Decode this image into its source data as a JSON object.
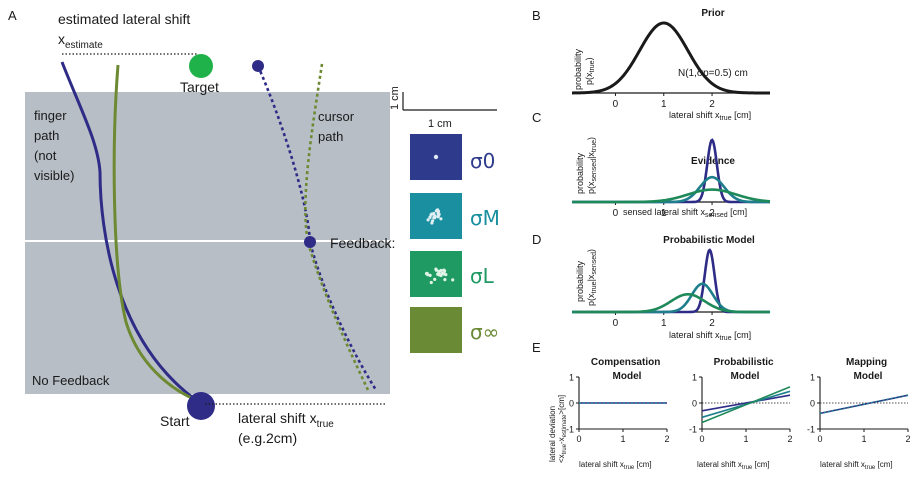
{
  "colors": {
    "blue": "#2e2c86",
    "teal": "#1e7e8c",
    "green": "#1e8a5a",
    "olive": "#6d8a33",
    "gray_panel": "#b7bec6",
    "target_green": "#1fb24a",
    "box_s0": "#2e3a8c",
    "box_sM": "#1a8fa0",
    "box_sL": "#1f9a62",
    "box_sinf": "#6a8a35"
  },
  "panelA": {
    "letter": "A",
    "heading": "estimated lateral shift",
    "x_estimate_main": "x",
    "x_estimate_sub": "estimate",
    "target_label": "Target",
    "finger_path_lines": [
      "finger",
      "path",
      "(not",
      "visible)"
    ],
    "cursor_path_lines": [
      "cursor",
      "path"
    ],
    "feedback_label": "Feedback:",
    "no_feedback_label": "No Feedback",
    "start_label": "Start",
    "shift_main": "lateral shift x",
    "shift_sub": "true",
    "shift_example": "(e.g.2cm)",
    "scale_vertical": "1 cm",
    "scale_horizontal": "1 cm",
    "sigma_labels": [
      "σ0",
      "σM",
      "σL",
      "σ∞"
    ]
  },
  "panelB": {
    "letter": "B",
    "title": "Prior",
    "ylabel_1": "probability",
    "ylabel_2": "p(x",
    "ylabel_2_sub": "true",
    "ylabel_2_end": ")",
    "annotation": "N(1,σp=0.5) cm",
    "xlabel_main": "lateral shift x",
    "xlabel_sub": "true",
    "xlabel_end": " [cm]",
    "ticks": [
      "0",
      "1",
      "2"
    ]
  },
  "panelC": {
    "letter": "C",
    "title": "Evidence",
    "ylabel_1": "probability",
    "ylabel_2": "p(x",
    "ylabel_2_sub": "sensed",
    "ylabel_2_end": "|x",
    "ylabel_2_sub2": "true",
    "ylabel_2_end2": ")",
    "xlabel_main": "sensed lateral shift x",
    "xlabel_sub": "sensed",
    "xlabel_end": " [cm]",
    "ticks": [
      "0",
      "1",
      "2"
    ]
  },
  "panelD": {
    "letter": "D",
    "title": "Probabilistic Model",
    "ylabel_1": "probability",
    "ylabel_2": "p(x",
    "ylabel_2_sub": "true",
    "ylabel_2_end": "|x",
    "ylabel_2_sub2": "sensed",
    "ylabel_2_end2": ")",
    "xlabel_main": "lateral shift x",
    "xlabel_sub": "true",
    "xlabel_end": " [cm]",
    "ticks": [
      "0",
      "1",
      "2"
    ]
  },
  "panelE": {
    "letter": "E",
    "ylabel_1": "lateral deviation",
    "ylabel_2": "<x",
    "ylabel_2_sub": "true",
    "ylabel_2_mid": "-x",
    "ylabel_2_sub2": "estimate",
    "ylabel_2_end": ">[cm]",
    "yticks": [
      "1",
      "0",
      "-1"
    ],
    "xticks": [
      "0",
      "1",
      "2"
    ],
    "xlabel_main": "lateral shift x",
    "xlabel_sub": "true",
    "xlabel_end": " [cm]",
    "titles": [
      [
        "Compensation",
        "Model"
      ],
      [
        "Probabilistic",
        "Model"
      ],
      [
        "Mapping",
        "Model"
      ]
    ]
  },
  "chart_data": [
    {
      "type": "line",
      "panel": "B",
      "title": "Prior",
      "xlim": [
        -0.9,
        3.2
      ],
      "series": [
        {
          "mean": 1.0,
          "sd": 0.5,
          "color": "#1a1a1a"
        }
      ]
    },
    {
      "type": "line",
      "panel": "C",
      "title": "Evidence",
      "xlim": [
        -0.9,
        3.2
      ],
      "series": [
        {
          "mean": 2.0,
          "sd": 0.1,
          "color": "#2e2c86"
        },
        {
          "mean": 2.0,
          "sd": 0.25,
          "color": "#1e7e8c"
        },
        {
          "mean": 2.0,
          "sd": 0.5,
          "color": "#1e8a5a"
        }
      ]
    },
    {
      "type": "line",
      "panel": "D",
      "title": "Probabilistic Model",
      "xlim": [
        -0.9,
        3.2
      ],
      "series": [
        {
          "mean": 1.95,
          "sd": 0.1,
          "color": "#2e2c86"
        },
        {
          "mean": 1.8,
          "sd": 0.22,
          "color": "#1e7e8c"
        },
        {
          "mean": 1.5,
          "sd": 0.35,
          "color": "#1e8a5a"
        }
      ]
    },
    {
      "type": "line",
      "panel": "E1",
      "title": "Compensation Model",
      "xlim": [
        0,
        2
      ],
      "ylim": [
        -1,
        1
      ],
      "series": [
        {
          "x": [
            0,
            2
          ],
          "y": [
            0,
            0
          ],
          "color": "#2e2c86"
        },
        {
          "x": [
            0,
            2
          ],
          "y": [
            0,
            0
          ],
          "color": "#1e7e8c"
        }
      ]
    },
    {
      "type": "line",
      "panel": "E2",
      "title": "Probabilistic Model",
      "xlim": [
        0,
        2
      ],
      "ylim": [
        -1,
        1
      ],
      "series": [
        {
          "x": [
            0,
            2
          ],
          "y": [
            -0.3,
            0.3
          ],
          "color": "#2e2c86"
        },
        {
          "x": [
            0,
            2
          ],
          "y": [
            -0.55,
            0.45
          ],
          "color": "#1e7e8c"
        },
        {
          "x": [
            0,
            2
          ],
          "y": [
            -0.75,
            0.62
          ],
          "color": "#1e8a5a"
        }
      ]
    },
    {
      "type": "line",
      "panel": "E3",
      "title": "Mapping Model",
      "xlim": [
        0,
        2
      ],
      "ylim": [
        -1,
        1
      ],
      "series": [
        {
          "x": [
            0,
            2
          ],
          "y": [
            -0.4,
            0.3
          ],
          "color": "#2e2c86"
        },
        {
          "x": [
            0,
            2
          ],
          "y": [
            -0.4,
            0.3
          ],
          "color": "#1e7e8c"
        }
      ]
    }
  ]
}
